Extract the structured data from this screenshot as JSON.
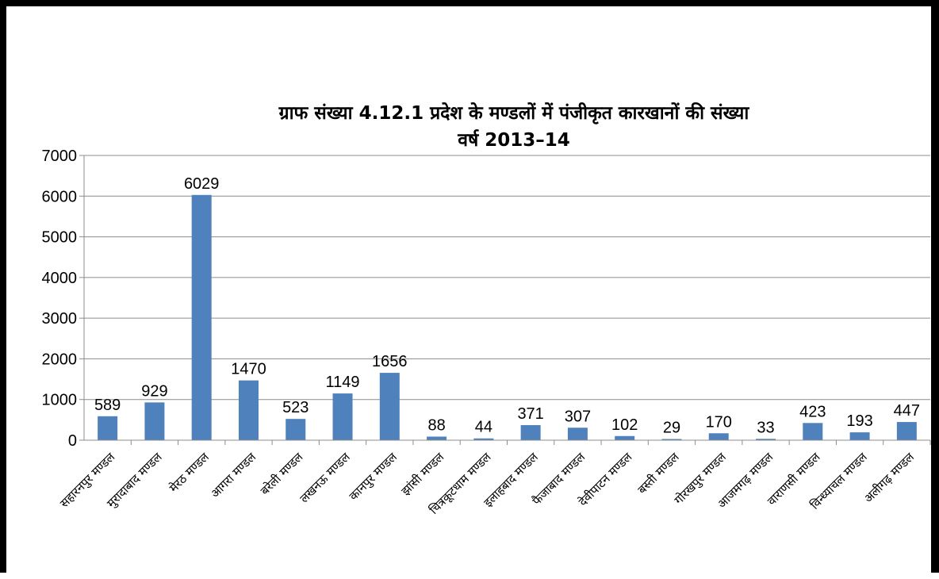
{
  "chart_data": {
    "type": "bar",
    "title": "ग्राफ संख्या 4.12.1 प्रदेश के मण्डलों में पंजीकृत कारखानों की संख्या",
    "subtitle": "वर्ष 2013–14",
    "xlabel": "",
    "ylabel": "",
    "ylim": [
      0,
      7000
    ],
    "yticks": [
      0,
      1000,
      2000,
      3000,
      4000,
      5000,
      6000,
      7000
    ],
    "grid": true,
    "legend": "none",
    "bar_color": "#4F81BD",
    "categories": [
      "सहारनपुर मण्डल",
      "मुरादाबाद मण्डल",
      "मेरठ मण्डल",
      "आगरा मण्डल",
      "बरेली मण्डल",
      "लखनऊ मण्डल",
      "कानपुर मण्डल",
      "झांसी मण्डल",
      "चित्रकूटधाम मण्डल",
      "इलाहबाद मण्डल",
      "फैजाबाद मण्डल",
      "देवीपाटन मण्डल",
      "बस्ती मण्डल",
      "गोरखपुर मण्डल",
      "आजमगढ़ मण्डल",
      "वाराणसी मण्डल",
      "विन्ध्याचल मण्डल",
      "अलीगढ़ मण्डल"
    ],
    "values": [
      589,
      929,
      6029,
      1470,
      523,
      1149,
      1656,
      88,
      44,
      371,
      307,
      102,
      29,
      170,
      33,
      423,
      193,
      447
    ]
  }
}
